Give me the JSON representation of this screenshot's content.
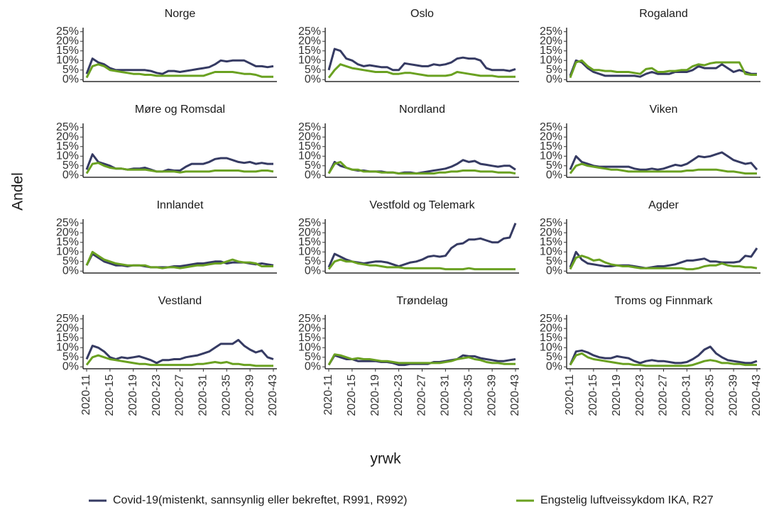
{
  "x_label": "yrwk",
  "y_label": "Andel",
  "categories": [
    "2020-11",
    null,
    null,
    null,
    "2020-15",
    null,
    null,
    null,
    "2020-19",
    null,
    null,
    null,
    "2020-23",
    null,
    null,
    null,
    "2020-27",
    null,
    null,
    null,
    "2020-31",
    null,
    null,
    null,
    "2020-35",
    null,
    null,
    null,
    "2020-39",
    null,
    null,
    null,
    "2020-43"
  ],
  "ylim": [
    -1,
    26
  ],
  "yticks": [
    {
      "value": 0,
      "label": "0%"
    },
    {
      "value": 5,
      "label": "5%"
    },
    {
      "value": 10,
      "label": "10%"
    },
    {
      "value": 15,
      "label": "15%"
    },
    {
      "value": 20,
      "label": "20%"
    },
    {
      "value": 25,
      "label": "25%"
    }
  ],
  "chart_data": [
    {
      "type": "line",
      "title": "Norge",
      "series": [
        {
          "name": "Covid-19(mistenkt, sannsynlig eller bekreftet, R991, R992)",
          "color": "#363b63",
          "values": [
            3,
            11,
            9,
            8,
            6,
            5,
            5,
            5,
            5,
            5,
            5,
            4.5,
            3.5,
            3,
            4.5,
            4.5,
            4,
            4.5,
            5,
            5.5,
            6,
            6.5,
            8,
            10,
            9.5,
            10,
            10,
            10,
            8.5,
            7,
            7,
            6.5,
            7
          ]
        },
        {
          "name": "Engstelig luftveissykdom IKA, R27",
          "color": "#6aa121",
          "values": [
            1,
            7,
            8,
            7,
            5,
            4.5,
            4,
            3.5,
            3,
            3,
            2.5,
            2.5,
            2,
            2,
            2,
            2,
            2,
            2,
            2,
            2,
            2,
            3,
            4,
            4,
            4,
            4,
            3.5,
            3,
            3,
            2.5,
            1.5,
            1.5,
            1.5
          ]
        }
      ]
    },
    {
      "type": "line",
      "title": "Oslo",
      "series": [
        {
          "name": "Covid-19(mistenkt, sannsynlig eller bekreftet, R991, R992)",
          "color": "#363b63",
          "values": [
            5,
            16,
            15,
            11,
            10,
            8,
            7,
            7.5,
            7,
            6.5,
            6.5,
            5,
            5,
            8.5,
            8,
            7.5,
            7,
            7,
            8,
            7.5,
            8,
            9,
            11,
            11.5,
            11,
            11,
            10,
            6,
            5,
            5,
            5,
            4.5,
            5.5
          ]
        },
        {
          "name": "Engstelig luftveissykdom IKA, R27",
          "color": "#6aa121",
          "values": [
            1,
            5,
            8,
            7,
            6,
            5.5,
            5,
            4.5,
            4,
            4,
            4,
            3,
            3,
            3.5,
            3.5,
            3,
            2.5,
            2,
            2,
            2,
            2,
            2.5,
            4,
            3.5,
            3,
            2.5,
            2,
            2,
            2,
            1.5,
            1.5,
            1.5,
            1.5
          ]
        }
      ]
    },
    {
      "type": "line",
      "title": "Rogaland",
      "series": [
        {
          "name": "Covid-19(mistenkt, sannsynlig eller bekreftet, R991, R992)",
          "color": "#363b63",
          "values": [
            2,
            10,
            9,
            6,
            4,
            3,
            2,
            2,
            2,
            2,
            2,
            2,
            1.5,
            3,
            4,
            3,
            3,
            3,
            4,
            4,
            4,
            5,
            7,
            6,
            6,
            6,
            8,
            6,
            4,
            5,
            4,
            3,
            3
          ]
        },
        {
          "name": "Engstelig luftveissykdom IKA, R27",
          "color": "#6aa121",
          "values": [
            1,
            9,
            10,
            7,
            5,
            5,
            4.5,
            4.5,
            4,
            4,
            4,
            3.5,
            3,
            5.5,
            6,
            4,
            4,
            4.5,
            4.5,
            5,
            5,
            7,
            8,
            7.5,
            8.5,
            9,
            9,
            9,
            9,
            9,
            3,
            2.5,
            2.5
          ]
        }
      ]
    },
    {
      "type": "line",
      "title": "Møre og Romsdal",
      "series": [
        {
          "name": "Covid-19(mistenkt, sannsynlig eller bekreftet, R991, R992)",
          "color": "#363b63",
          "values": [
            3,
            11,
            7,
            6,
            5,
            3.5,
            3.5,
            3,
            3.5,
            3.5,
            4,
            3,
            2,
            2,
            3,
            2.5,
            2.5,
            4.5,
            6,
            6,
            6,
            7,
            8.5,
            9,
            9,
            8,
            7,
            6.5,
            7,
            6,
            6.5,
            6,
            6
          ]
        },
        {
          "name": "Engstelig luftveissykdom IKA, R27",
          "color": "#6aa121",
          "values": [
            1,
            6,
            6.5,
            5,
            4,
            3.5,
            3.5,
            3,
            3,
            3,
            3,
            2.5,
            2,
            2,
            2,
            2,
            1.5,
            2,
            2,
            2,
            2,
            2,
            2.5,
            2.5,
            2.5,
            2.5,
            2.5,
            2,
            2,
            2,
            2.5,
            2.5,
            2
          ]
        }
      ]
    },
    {
      "type": "line",
      "title": "Nordland",
      "series": [
        {
          "name": "Covid-19(mistenkt, sannsynlig eller bekreftet, R991, R992)",
          "color": "#363b63",
          "values": [
            1,
            7,
            5,
            4,
            3,
            2.5,
            2.5,
            2,
            2,
            2,
            1.5,
            1.5,
            1,
            1.5,
            1.5,
            1,
            1.5,
            2,
            2.5,
            3,
            3.5,
            4.5,
            6,
            8,
            7,
            7.5,
            6,
            5.5,
            5,
            4.5,
            5,
            5,
            3
          ]
        },
        {
          "name": "Engstelig luftveissykdom IKA, R27",
          "color": "#6aa121",
          "values": [
            1,
            6,
            7,
            4,
            3,
            3,
            2,
            2,
            2,
            1.5,
            1.5,
            1.5,
            1,
            1,
            1,
            1,
            1,
            1,
            1,
            1.5,
            1.5,
            2,
            2,
            2.5,
            2.5,
            2.5,
            2,
            2,
            2,
            1.5,
            1.5,
            1.5,
            1
          ]
        }
      ]
    },
    {
      "type": "line",
      "title": "Viken",
      "series": [
        {
          "name": "Covid-19(mistenkt, sannsynlig eller bekreftet, R991, R992)",
          "color": "#363b63",
          "values": [
            3,
            10,
            7,
            6,
            5,
            4.5,
            4.5,
            4.5,
            4.5,
            4.5,
            4.5,
            3.5,
            3,
            3,
            3.5,
            3,
            3.5,
            4.5,
            5.5,
            5,
            6,
            8,
            10,
            9.5,
            10,
            11,
            12,
            10,
            8,
            7,
            6,
            6.5,
            3
          ]
        },
        {
          "name": "Engstelig luftveissykdom IKA, R27",
          "color": "#6aa121",
          "values": [
            1,
            5,
            6,
            5,
            4.5,
            4,
            3.5,
            3,
            3,
            2.5,
            2,
            2,
            2,
            2,
            2,
            2,
            2,
            2,
            2,
            2,
            2.5,
            2.5,
            3,
            3,
            3,
            3,
            2.5,
            2,
            2,
            1.5,
            1,
            1,
            1
          ]
        }
      ]
    },
    {
      "type": "line",
      "title": "Innlandet",
      "series": [
        {
          "name": "Covid-19(mistenkt, sannsynlig eller bekreftet, R991, R992)",
          "color": "#363b63",
          "values": [
            3,
            9,
            7,
            5,
            4,
            3,
            3,
            2.5,
            3,
            3,
            2.5,
            2,
            2,
            2,
            2,
            2.5,
            2.5,
            3,
            3.5,
            4,
            4,
            4.5,
            5,
            5,
            4,
            4.5,
            4.5,
            4.5,
            4,
            3.5,
            4,
            3.5,
            3
          ]
        },
        {
          "name": "Engstelig luftveissykdom IKA, R27",
          "color": "#6aa121",
          "values": [
            3,
            10,
            8,
            6,
            5,
            4,
            3.5,
            3,
            3,
            3,
            3,
            2,
            2,
            1.5,
            2,
            2,
            1.5,
            2,
            2.5,
            3,
            3,
            3.5,
            4,
            4,
            5,
            6,
            5,
            4.5,
            4.5,
            4,
            2.5,
            2.5,
            2.5
          ]
        }
      ]
    },
    {
      "type": "line",
      "title": "Vestfold og Telemark",
      "series": [
        {
          "name": "Covid-19(mistenkt, sannsynlig eller bekreftet, R991, R992)",
          "color": "#363b63",
          "values": [
            2,
            9,
            7.5,
            6,
            5,
            4.5,
            4,
            4.5,
            5,
            5,
            4.5,
            3.5,
            2.5,
            3.5,
            4.5,
            5,
            6,
            7.5,
            8,
            7.5,
            8,
            12,
            14,
            14.5,
            16.5,
            16.5,
            17,
            16,
            15,
            15,
            17,
            17.5,
            25
          ]
        },
        {
          "name": "Engstelig luftveissykdom IKA, R27",
          "color": "#6aa121",
          "values": [
            1,
            5,
            6,
            5,
            5,
            4,
            3.5,
            3,
            3,
            2.5,
            2,
            2,
            2,
            1.5,
            1.5,
            1.5,
            1.5,
            1.5,
            1.5,
            1.5,
            1,
            1,
            1,
            1,
            1.5,
            1,
            1,
            1,
            1,
            1,
            1,
            1,
            1
          ]
        }
      ]
    },
    {
      "type": "line",
      "title": "Agder",
      "series": [
        {
          "name": "Covid-19(mistenkt, sannsynlig eller bekreftet, R991, R992)",
          "color": "#363b63",
          "values": [
            2,
            10,
            6,
            4,
            3.5,
            3,
            2.5,
            2.5,
            3,
            3,
            3,
            2.5,
            2,
            1.5,
            2,
            2.5,
            2.5,
            3,
            3.5,
            4.5,
            5.5,
            5.5,
            6,
            6.5,
            5,
            5,
            4.5,
            4.5,
            4.5,
            5,
            8,
            7.5,
            12
          ]
        },
        {
          "name": "Engstelig luftveissykdom IKA, R27",
          "color": "#6aa121",
          "values": [
            1,
            7,
            8,
            7,
            5.5,
            6,
            4.5,
            3.5,
            3,
            2.5,
            2.5,
            2,
            1.5,
            1.5,
            1.5,
            1.5,
            1.5,
            1.5,
            1.5,
            1.5,
            1,
            1,
            1.5,
            2.5,
            3,
            3,
            4,
            3,
            2.5,
            2.5,
            2,
            2,
            1.5
          ]
        }
      ]
    },
    {
      "type": "line",
      "title": "Vestland",
      "series": [
        {
          "name": "Covid-19(mistenkt, sannsynlig eller bekreftet, R991, R992)",
          "color": "#363b63",
          "values": [
            4,
            11,
            10,
            8,
            5,
            4,
            5,
            4.5,
            5,
            5.5,
            4.5,
            3.5,
            2,
            3.5,
            3.5,
            4,
            4,
            5,
            5.5,
            6,
            7,
            8,
            10,
            12,
            12,
            12,
            14,
            11,
            9,
            7.5,
            8.5,
            5,
            4
          ]
        },
        {
          "name": "Engstelig luftveissykdom IKA, R27",
          "color": "#6aa121",
          "values": [
            1,
            5,
            6,
            5,
            4,
            3.5,
            3,
            2.5,
            2,
            1.5,
            1.5,
            1,
            1,
            1,
            1,
            1,
            1,
            1,
            1,
            1.5,
            1.5,
            2,
            2.5,
            2,
            2.5,
            1.5,
            1.5,
            1,
            1,
            0.5,
            0.5,
            0.5,
            0.5
          ]
        }
      ]
    },
    {
      "type": "line",
      "title": "Trøndelag",
      "series": [
        {
          "name": "Covid-19(mistenkt, sannsynlig eller bekreftet, R991, R992)",
          "color": "#363b63",
          "values": [
            1,
            6,
            5,
            4,
            4,
            3,
            3,
            3,
            3,
            2.5,
            2.5,
            2,
            1,
            1,
            1.5,
            1.5,
            1.5,
            1.5,
            2.5,
            2.5,
            3,
            3.5,
            4,
            6,
            5.5,
            5.5,
            4.5,
            4,
            3.5,
            3,
            3,
            3.5,
            4
          ]
        },
        {
          "name": "Engstelig luftveissykdom IKA, R27",
          "color": "#6aa121",
          "values": [
            1,
            6.5,
            6,
            5,
            4,
            4.5,
            4,
            4,
            3.5,
            3,
            3,
            2.5,
            2,
            2,
            2,
            2,
            2,
            2,
            2,
            2,
            2.5,
            3,
            4,
            4.5,
            5,
            4,
            3.5,
            2.5,
            2,
            2,
            1.5,
            1.5,
            1.5
          ]
        }
      ]
    },
    {
      "type": "line",
      "title": "Troms og Finnmark",
      "series": [
        {
          "name": "Covid-19(mistenkt, sannsynlig eller bekreftet, R991, R992)",
          "color": "#363b63",
          "values": [
            1,
            8,
            8.5,
            7.5,
            6,
            5,
            4.5,
            4.5,
            5.5,
            5,
            4.5,
            3,
            2,
            3,
            3.5,
            3,
            3,
            2.5,
            2,
            2,
            2.5,
            4,
            6,
            9,
            10.5,
            7,
            5,
            3.5,
            3,
            2.5,
            2,
            2,
            3
          ]
        },
        {
          "name": "Engstelig luftveissykdom IKA, R27",
          "color": "#6aa121",
          "values": [
            1,
            6,
            7,
            5,
            4,
            3.5,
            3,
            2.5,
            2,
            1.5,
            1.5,
            1,
            1,
            0.5,
            0.5,
            0.5,
            0.5,
            0.5,
            0.5,
            0.5,
            0.5,
            1,
            2,
            3,
            3.5,
            3,
            2,
            2,
            1.5,
            1.5,
            1,
            1,
            1
          ]
        }
      ]
    }
  ]
}
